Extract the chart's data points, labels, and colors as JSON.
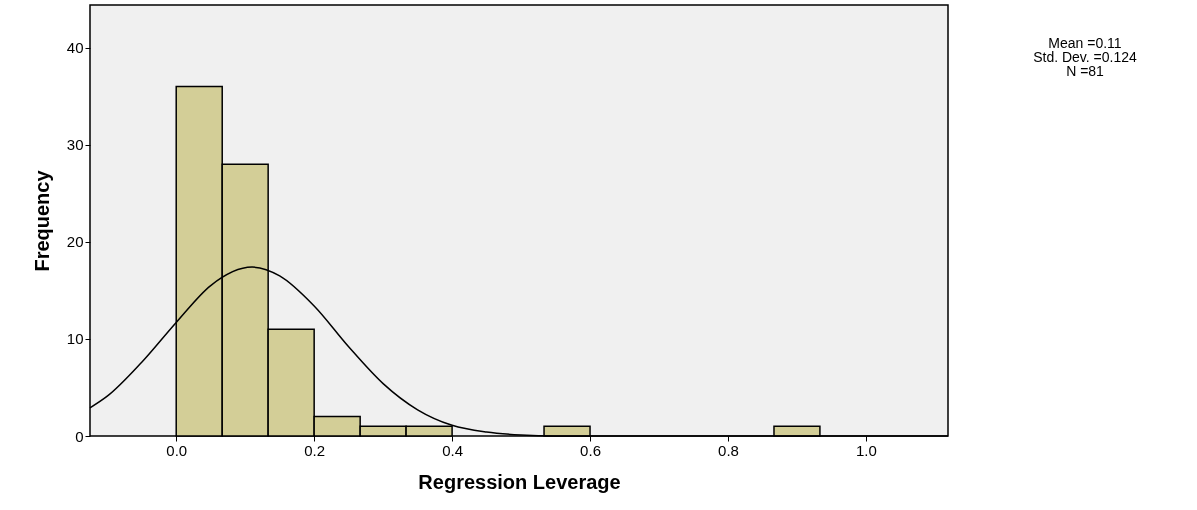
{
  "chart_data": {
    "type": "histogram",
    "xlabel": "Regression Leverage",
    "ylabel": "Frequency",
    "bins": [
      0,
      0.0667,
      0.1333,
      0.2,
      0.2667,
      0.3333,
      0.4,
      0.4667,
      0.5333,
      0.6,
      0.6667,
      0.7333,
      0.8,
      0.8667,
      0.9333
    ],
    "values": [
      36,
      28,
      11,
      2,
      1,
      1,
      0,
      0,
      1,
      0,
      0,
      0,
      0,
      1
    ],
    "color": "#d3ce97",
    "series": [
      {
        "type": "line",
        "color": "#000000",
        "x": [
          -0.125,
          -0.1,
          -0.05,
          0,
          0.05,
          0.11,
          0.15,
          0.2,
          0.25,
          0.3,
          0.35,
          0.4,
          0.45,
          0.5,
          0.55,
          0.6,
          0.8,
          1.119
        ],
        "values": [
          2.9,
          4.1,
          7.6,
          11.7,
          15.5,
          17.4,
          16.5,
          13.4,
          9.2,
          5.4,
          2.7,
          1.1,
          0.4,
          0.1,
          0,
          0,
          0,
          0
        ]
      }
    ],
    "xlim": [
      -0.125,
      1.119
    ],
    "xticks": [
      {
        "value": 0,
        "label": "0.0"
      },
      0.2,
      0.4,
      0.6,
      0.8,
      {
        "value": 1,
        "label": "1.0"
      }
    ],
    "ylim": [
      0,
      44.4
    ],
    "yticks": [
      0,
      10,
      20,
      30,
      40
    ],
    "annotations": [
      "Mean =0.11",
      "Std. Dev. =0.124",
      "N =81"
    ]
  }
}
